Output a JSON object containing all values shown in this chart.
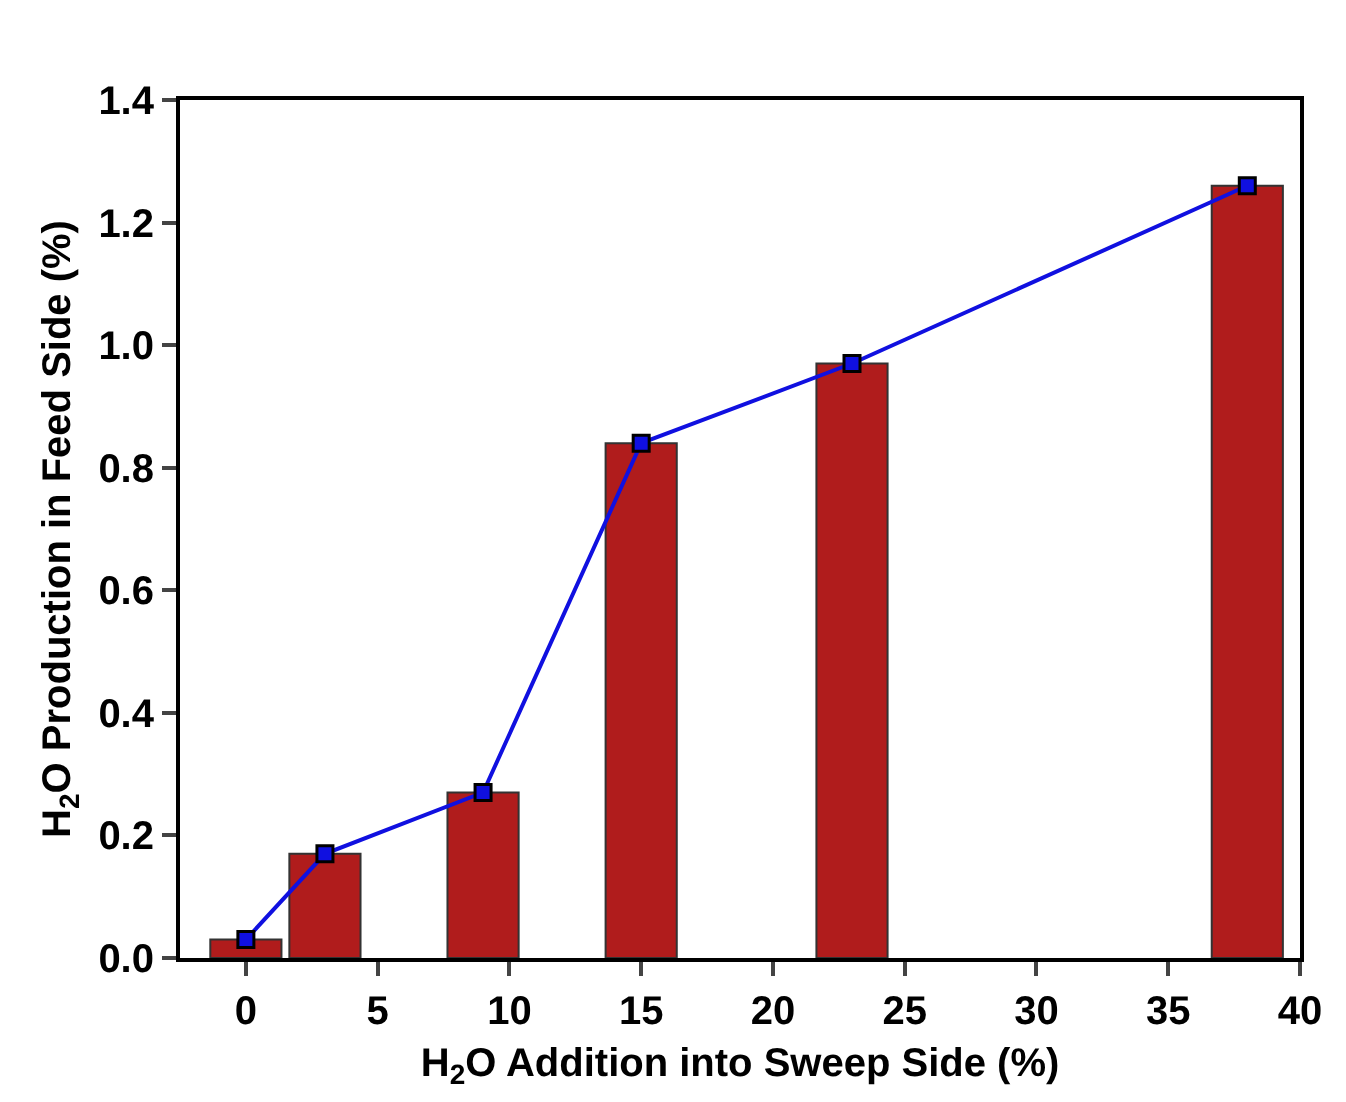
{
  "chart_data": {
    "type": "bar",
    "xlabel": "H$_{2}$O Addition into Sweep Side (%)",
    "ylabel": "H$_{2}$O Production in Feed Side (%)",
    "x": [
      0,
      3,
      9,
      15,
      23,
      38
    ],
    "series": [
      {
        "color": "#b01c1c",
        "values": [
          0.03,
          0.17,
          0.27,
          0.84,
          0.97,
          1.26
        ]
      },
      {
        "type": "line",
        "color": "#1010e0",
        "marker": "square",
        "values": [
          0.03,
          0.17,
          0.27,
          0.84,
          0.97,
          1.26
        ]
      }
    ],
    "xlim": [
      -2.5,
      40
    ],
    "xticks": [
      0,
      5,
      10,
      15,
      20,
      25,
      30,
      35,
      40
    ],
    "ylim": [
      0,
      1.4
    ],
    "yticks": [
      {
        "value": 0,
        "label": "0.0"
      },
      {
        "value": 0.2,
        "label": "0.2"
      },
      {
        "value": 0.4,
        "label": "0.4"
      },
      {
        "value": 0.6,
        "label": "0.6"
      },
      {
        "value": 0.8,
        "label": "0.8"
      },
      {
        "value": 1.0,
        "label": "1.0"
      },
      {
        "value": 1.2,
        "label": "1.2"
      },
      {
        "value": 1.4,
        "label": "1.4"
      }
    ]
  }
}
